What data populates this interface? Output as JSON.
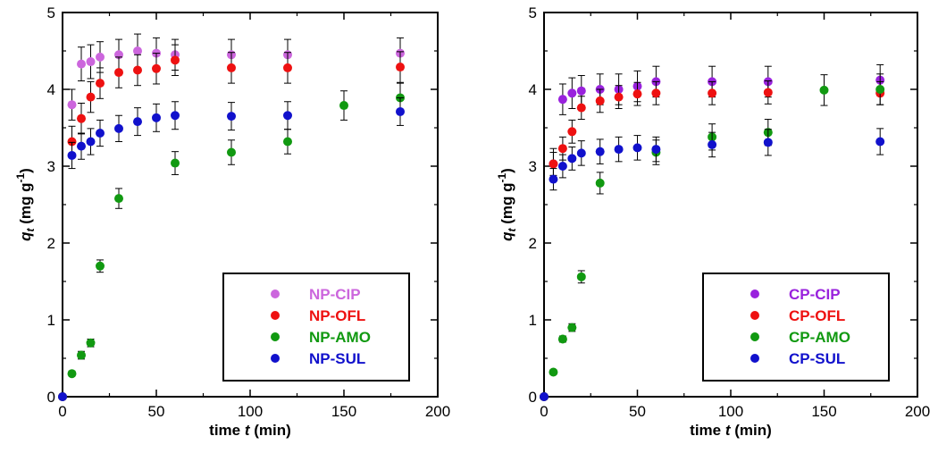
{
  "chart_data": [
    {
      "type": "scatter",
      "title": "",
      "xlabel_prefix": "time ",
      "xlabel_var": "t",
      "xlabel_suffix": " (min)",
      "ylabel_var": "q",
      "ylabel_sub": "t",
      "ylabel_suffix": " (mg g",
      "ylabel_sup": "-1",
      "ylabel_close": ")",
      "xlim": [
        0,
        200
      ],
      "ylim": [
        0,
        5
      ],
      "xticks": [
        0,
        50,
        100,
        150,
        200
      ],
      "yticks": [
        0,
        1,
        2,
        3,
        4,
        5
      ],
      "grid": false,
      "legend_position": "bottom-right",
      "series": [
        {
          "name": "NP-CIP",
          "color": "#cc66dd",
          "x": [
            0,
            5,
            10,
            15,
            20,
            30,
            40,
            50,
            60,
            90,
            120,
            180
          ],
          "y": [
            0,
            3.8,
            4.33,
            4.36,
            4.42,
            4.45,
            4.5,
            4.47,
            4.45,
            4.45,
            4.45,
            4.47
          ],
          "err": [
            0,
            0.2,
            0.22,
            0.22,
            0.2,
            0.2,
            0.22,
            0.2,
            0.2,
            0.2,
            0.2,
            0.2
          ]
        },
        {
          "name": "NP-OFL",
          "color": "#ee1111",
          "x": [
            0,
            5,
            10,
            15,
            20,
            30,
            40,
            50,
            60,
            90,
            120,
            180
          ],
          "y": [
            0,
            3.32,
            3.62,
            3.9,
            4.08,
            4.22,
            4.25,
            4.27,
            4.38,
            4.28,
            4.28,
            4.29
          ],
          "err": [
            0,
            0.2,
            0.2,
            0.2,
            0.2,
            0.2,
            0.2,
            0.2,
            0.2,
            0.2,
            0.2,
            0.2
          ]
        },
        {
          "name": "NP-AMO",
          "color": "#119911",
          "x": [
            0,
            5,
            10,
            15,
            20,
            30,
            60,
            90,
            120,
            150,
            180
          ],
          "y": [
            0,
            0.3,
            0.54,
            0.7,
            1.7,
            2.58,
            3.04,
            3.18,
            3.32,
            3.79,
            3.89
          ],
          "err": [
            0,
            0.03,
            0.05,
            0.05,
            0.08,
            0.13,
            0.15,
            0.16,
            0.16,
            0.19,
            0.19
          ]
        },
        {
          "name": "NP-SUL",
          "color": "#1111cc",
          "x": [
            0,
            5,
            10,
            15,
            20,
            30,
            40,
            50,
            60,
            90,
            120,
            180
          ],
          "y": [
            0,
            3.14,
            3.26,
            3.32,
            3.43,
            3.49,
            3.58,
            3.63,
            3.66,
            3.65,
            3.66,
            3.71
          ],
          "err": [
            0,
            0.17,
            0.17,
            0.17,
            0.17,
            0.17,
            0.18,
            0.18,
            0.18,
            0.18,
            0.18,
            0.18
          ]
        }
      ]
    },
    {
      "type": "scatter",
      "title": "",
      "xlabel_prefix": "time ",
      "xlabel_var": "t",
      "xlabel_suffix": " (min)",
      "ylabel_var": "q",
      "ylabel_sub": "t",
      "ylabel_suffix": " (mg g",
      "ylabel_sup": "-1",
      "ylabel_close": ")",
      "xlim": [
        0,
        200
      ],
      "ylim": [
        0,
        5
      ],
      "xticks": [
        0,
        50,
        100,
        150,
        200
      ],
      "yticks": [
        0,
        1,
        2,
        3,
        4,
        5
      ],
      "grid": false,
      "legend_position": "bottom-right",
      "series": [
        {
          "name": "CP-CIP",
          "color": "#9922dd",
          "x": [
            0,
            5,
            10,
            15,
            20,
            30,
            40,
            50,
            60,
            90,
            120,
            180
          ],
          "y": [
            0,
            3.03,
            3.87,
            3.95,
            3.98,
            4.0,
            4.0,
            4.04,
            4.1,
            4.1,
            4.1,
            4.12
          ],
          "err": [
            0,
            0.2,
            0.2,
            0.2,
            0.2,
            0.2,
            0.2,
            0.2,
            0.2,
            0.2,
            0.2,
            0.2
          ]
        },
        {
          "name": "CP-OFL",
          "color": "#ee1111",
          "x": [
            0,
            5,
            10,
            15,
            20,
            30,
            40,
            50,
            60,
            90,
            120,
            180
          ],
          "y": [
            0,
            3.03,
            3.23,
            3.45,
            3.76,
            3.85,
            3.9,
            3.94,
            3.95,
            3.95,
            3.96,
            3.95
          ],
          "err": [
            0,
            0.15,
            0.15,
            0.15,
            0.15,
            0.15,
            0.15,
            0.15,
            0.15,
            0.15,
            0.15,
            0.15
          ]
        },
        {
          "name": "CP-AMO",
          "color": "#119911",
          "x": [
            0,
            5,
            10,
            15,
            20,
            30,
            60,
            90,
            120,
            150,
            180
          ],
          "y": [
            0,
            0.32,
            0.75,
            0.9,
            1.56,
            2.78,
            3.18,
            3.38,
            3.44,
            3.99,
            4.0
          ],
          "err": [
            0,
            0.03,
            0.04,
            0.05,
            0.08,
            0.14,
            0.16,
            0.17,
            0.17,
            0.2,
            0.2
          ]
        },
        {
          "name": "CP-SUL",
          "color": "#1111cc",
          "x": [
            0,
            5,
            10,
            15,
            20,
            30,
            40,
            50,
            60,
            90,
            120,
            180
          ],
          "y": [
            0,
            2.83,
            3.0,
            3.1,
            3.17,
            3.19,
            3.22,
            3.24,
            3.22,
            3.28,
            3.31,
            3.32
          ],
          "err": [
            0,
            0.14,
            0.15,
            0.15,
            0.16,
            0.16,
            0.16,
            0.16,
            0.16,
            0.16,
            0.17,
            0.17
          ]
        }
      ]
    }
  ]
}
